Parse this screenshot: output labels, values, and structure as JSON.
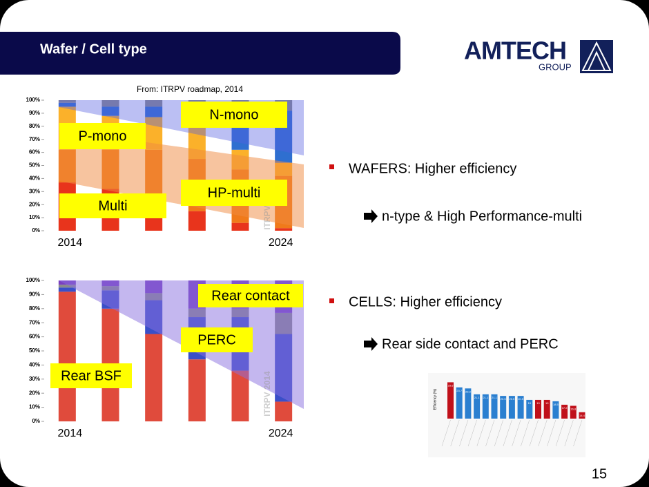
{
  "header": {
    "title": "Wafer / Cell type",
    "logo": "AMTECH",
    "logo_sub": "GROUP"
  },
  "source_note": "From: ITRPV roadmap, 2014",
  "charts": [
    {
      "type": "bar",
      "stacked": true,
      "categories": [
        "2014",
        null,
        null,
        null,
        null,
        "2024"
      ],
      "series": [
        {
          "color": "#e8341c",
          "values": [
            37,
            32,
            10,
            15,
            6,
            2
          ]
        },
        {
          "color": "#f07a1a",
          "values": [
            25,
            30,
            52,
            40,
            41,
            40
          ]
        },
        {
          "color": "#fbb12a",
          "values": [
            33,
            26,
            25,
            25,
            15,
            10
          ]
        },
        {
          "color": "#2f6fd0",
          "values": [
            3,
            7,
            8,
            15,
            30,
            40
          ]
        },
        {
          "color": "#8c8c8c",
          "values": [
            2,
            5,
            5,
            5,
            8,
            8
          ]
        }
      ],
      "ylim": [
        0,
        100
      ],
      "yticks": [
        {
          "value": 0,
          "label": "0%"
        },
        {
          "value": 10,
          "label": "10%"
        },
        {
          "value": 20,
          "label": "20%"
        },
        {
          "value": 30,
          "label": "30%"
        },
        {
          "value": 40,
          "label": "40%"
        },
        {
          "value": 50,
          "label": "50%"
        },
        {
          "value": 60,
          "label": "60%"
        },
        {
          "value": 70,
          "label": "70%"
        },
        {
          "value": 80,
          "label": "80%"
        },
        {
          "value": 90,
          "label": "90%"
        },
        {
          "value": 100,
          "label": "100%"
        }
      ],
      "annotations": [
        "P-mono",
        "N-mono",
        "HP-multi",
        "Multi"
      ],
      "watermark": "ITRPV 2014"
    },
    {
      "type": "bar",
      "stacked": true,
      "categories": [
        "2014",
        null,
        null,
        null,
        null,
        "2024"
      ],
      "series": [
        {
          "color": "#e04b3c",
          "values": [
            92,
            80,
            62,
            44,
            36,
            14
          ]
        },
        {
          "color": "#3a4fc8",
          "values": [
            3,
            13,
            24,
            30,
            38,
            48
          ]
        },
        {
          "color": "#8a8a8a",
          "values": [
            2,
            3,
            5,
            6,
            6,
            15
          ]
        },
        {
          "color": "#7a3fc0",
          "values": [
            3,
            4,
            9,
            20,
            20,
            23
          ]
        }
      ],
      "ylim": [
        0,
        100
      ],
      "yticks": [
        {
          "value": 0,
          "label": "0%"
        },
        {
          "value": 10,
          "label": "10%"
        },
        {
          "value": 20,
          "label": "20%"
        },
        {
          "value": 30,
          "label": "30%"
        },
        {
          "value": 40,
          "label": "40%"
        },
        {
          "value": 50,
          "label": "50%"
        },
        {
          "value": 60,
          "label": "60%"
        },
        {
          "value": 70,
          "label": "70%"
        },
        {
          "value": 80,
          "label": "80%"
        },
        {
          "value": 90,
          "label": "90%"
        },
        {
          "value": 100,
          "label": "100%"
        }
      ],
      "annotations": [
        "Rear contact",
        "PERC",
        "Rear BSF"
      ],
      "watermark": "ITRPV 2014"
    },
    {
      "type": "bar",
      "y_label": "Efficiency (%)",
      "ylim": [
        12,
        27
      ],
      "values": [
        25.6,
        23.7,
        23.3,
        21.1,
        21.1,
        21.1,
        20.5,
        20.5,
        20.5,
        19,
        19,
        19,
        18.5,
        17.2,
        16.8,
        14.4
      ],
      "colors": [
        "#c0101a",
        "#2a7fd0",
        "#2a7fd0",
        "#2a7fd0",
        "#2a7fd0",
        "#2a7fd0",
        "#2a7fd0",
        "#2a7fd0",
        "#2a7fd0",
        "#2a7fd0",
        "#c0101a",
        "#c0101a",
        "#2a7fd0",
        "#c0101a",
        "#c0101a",
        "#c0101a"
      ]
    }
  ],
  "bullets": [
    {
      "text": "WAFERS: Higher efficiency",
      "sub": "n-type &  High Performance-multi"
    },
    {
      "text": "CELLS:  Higher efficiency",
      "sub": "Rear side contact and PERC"
    }
  ],
  "page_number": "15"
}
